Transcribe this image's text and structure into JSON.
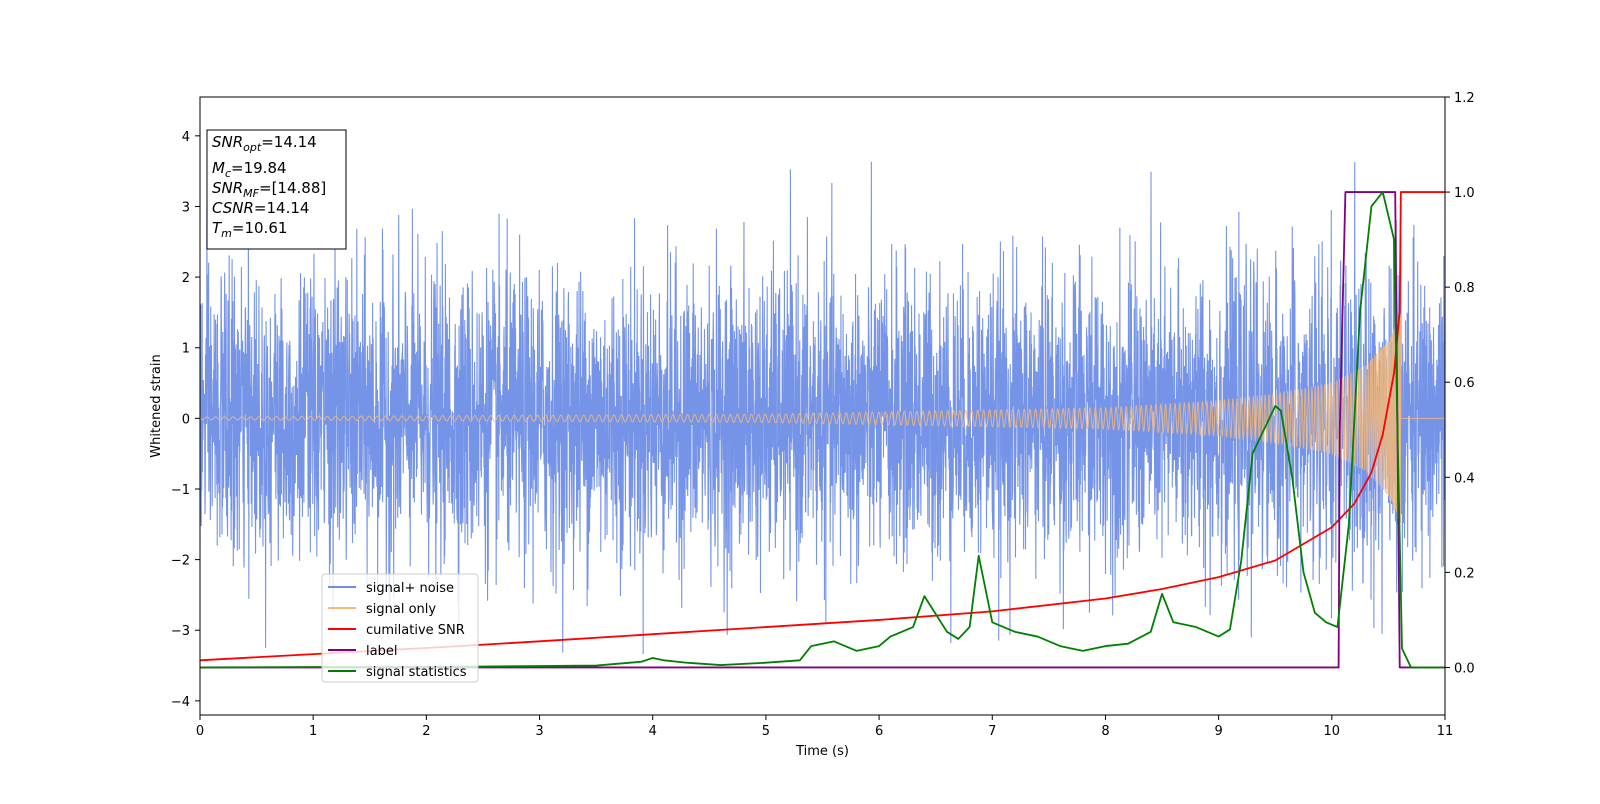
{
  "chart_data": {
    "type": "line",
    "xlabel": "Time (s)",
    "ylabel": "Whitened strain",
    "xlim": [
      0,
      11
    ],
    "ylim_left": [
      -4.2,
      4.55
    ],
    "ylim_right": [
      -0.1,
      1.2
    ],
    "x_ticks": [
      "0",
      "1",
      "2",
      "3",
      "4",
      "5",
      "6",
      "7",
      "8",
      "9",
      "10",
      "11"
    ],
    "y_ticks_left": [
      "4",
      "3",
      "2",
      "1",
      "0",
      "−1",
      "−2",
      "−3",
      "−4"
    ],
    "y_ticks_right": [
      "1.2",
      "1.0",
      "0.8",
      "0.6",
      "0.4",
      "0.2",
      "0.0"
    ],
    "grid": false,
    "legend_placement": "lower-left",
    "colors": {
      "signal_noise": "#6f8ee6",
      "signal_only": "#f5b87a",
      "cumulative_snr": "#ff0000",
      "label": "#800080",
      "signal_statistics": "#008000"
    },
    "info_box": {
      "snr_opt": {
        "base": "SNR",
        "sub": "opt",
        "value": "=14.14"
      },
      "mc": {
        "base": "M",
        "sub": "c",
        "value": "=19.84"
      },
      "snr_mf": {
        "base": "SNR",
        "sub": "MF",
        "value": "=[14.88]"
      },
      "csnr": {
        "base": "CSNR",
        "value": "=14.14"
      },
      "tm": {
        "base": "T",
        "sub": "m",
        "value": "=10.61"
      }
    },
    "series": [
      {
        "name": "signal+ noise",
        "axis": "left",
        "noise_sigma": 1.0,
        "min": -3.75,
        "max": 4.18
      },
      {
        "name": "signal only",
        "axis": "left",
        "amplitude_points": [
          [
            0,
            0.02
          ],
          [
            5,
            0.06
          ],
          [
            8,
            0.15
          ],
          [
            9,
            0.25
          ],
          [
            9.5,
            0.35
          ],
          [
            10,
            0.5
          ],
          [
            10.3,
            0.75
          ],
          [
            10.5,
            1.1
          ],
          [
            10.6,
            1.5
          ]
        ],
        "merger_time": 10.61
      },
      {
        "name": "cumilative SNR",
        "axis": "right",
        "points": [
          [
            0,
            0.015
          ],
          [
            1,
            0.028
          ],
          [
            2,
            0.041
          ],
          [
            3,
            0.055
          ],
          [
            4,
            0.07
          ],
          [
            5,
            0.085
          ],
          [
            6,
            0.1
          ],
          [
            7,
            0.118
          ],
          [
            8,
            0.145
          ],
          [
            8.5,
            0.165
          ],
          [
            9,
            0.19
          ],
          [
            9.5,
            0.225
          ],
          [
            10,
            0.295
          ],
          [
            10.2,
            0.345
          ],
          [
            10.35,
            0.41
          ],
          [
            10.45,
            0.49
          ],
          [
            10.55,
            0.62
          ],
          [
            10.6,
            0.75
          ],
          [
            10.61,
            1.0
          ],
          [
            11,
            1.0
          ]
        ]
      },
      {
        "name": "label",
        "axis": "right",
        "points": [
          [
            0,
            0.0
          ],
          [
            10.06,
            0.0
          ],
          [
            10.07,
            0.5
          ],
          [
            10.12,
            1.0
          ],
          [
            10.56,
            1.0
          ],
          [
            10.58,
            0.5
          ],
          [
            10.6,
            0.0
          ],
          [
            11,
            0.0
          ]
        ]
      },
      {
        "name": "signal statistics",
        "axis": "right",
        "points": [
          [
            0,
            0.0
          ],
          [
            1,
            0.001
          ],
          [
            2,
            0.001
          ],
          [
            3,
            0.003
          ],
          [
            3.5,
            0.004
          ],
          [
            3.9,
            0.012
          ],
          [
            4.0,
            0.02
          ],
          [
            4.1,
            0.015
          ],
          [
            4.3,
            0.01
          ],
          [
            4.6,
            0.005
          ],
          [
            5.0,
            0.01
          ],
          [
            5.3,
            0.015
          ],
          [
            5.4,
            0.045
          ],
          [
            5.6,
            0.055
          ],
          [
            5.8,
            0.035
          ],
          [
            6.0,
            0.045
          ],
          [
            6.1,
            0.065
          ],
          [
            6.3,
            0.085
          ],
          [
            6.4,
            0.15
          ],
          [
            6.6,
            0.075
          ],
          [
            6.7,
            0.06
          ],
          [
            6.8,
            0.085
          ],
          [
            6.88,
            0.235
          ],
          [
            7.0,
            0.095
          ],
          [
            7.2,
            0.075
          ],
          [
            7.4,
            0.065
          ],
          [
            7.6,
            0.045
          ],
          [
            7.8,
            0.035
          ],
          [
            8.0,
            0.045
          ],
          [
            8.2,
            0.05
          ],
          [
            8.4,
            0.075
          ],
          [
            8.5,
            0.155
          ],
          [
            8.6,
            0.095
          ],
          [
            8.8,
            0.085
          ],
          [
            9.0,
            0.065
          ],
          [
            9.1,
            0.08
          ],
          [
            9.2,
            0.225
          ],
          [
            9.3,
            0.45
          ],
          [
            9.4,
            0.5
          ],
          [
            9.5,
            0.55
          ],
          [
            9.55,
            0.54
          ],
          [
            9.65,
            0.4
          ],
          [
            9.75,
            0.2
          ],
          [
            9.85,
            0.115
          ],
          [
            9.95,
            0.095
          ],
          [
            10.05,
            0.085
          ],
          [
            10.15,
            0.3
          ],
          [
            10.25,
            0.75
          ],
          [
            10.35,
            0.97
          ],
          [
            10.45,
            1.0
          ],
          [
            10.55,
            0.9
          ],
          [
            10.58,
            0.5
          ],
          [
            10.62,
            0.04
          ],
          [
            10.7,
            0.0
          ],
          [
            11,
            0.0
          ]
        ]
      }
    ]
  }
}
